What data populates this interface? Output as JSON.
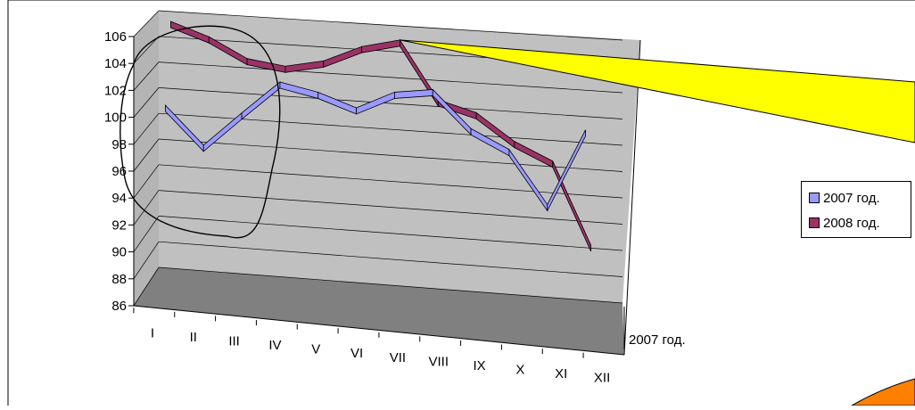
{
  "chart_data": {
    "type": "line",
    "title": "",
    "xlabel": "",
    "ylabel": "",
    "categories": [
      "I",
      "II",
      "III",
      "IV",
      "V",
      "VI",
      "VII",
      "VIII",
      "IX",
      "X",
      "XI",
      "XII"
    ],
    "ylim": [
      86,
      106
    ],
    "yticks": [
      "86",
      "88",
      "90",
      "92",
      "94",
      "96",
      "98",
      "100",
      "102",
      "104",
      "106"
    ],
    "depth_axis_label": "2007 год.",
    "grid": true,
    "legend_position": "right",
    "series": [
      {
        "name": "2007 год.",
        "color": "#9999ff",
        "values": [
          99.2,
          96.3,
          99.0,
          101.6,
          101.0,
          100.0,
          101.4,
          101.8,
          99.0,
          97.6,
          93.6,
          99.5
        ]
      },
      {
        "name": "2008 год.",
        "color": "#993366",
        "values": [
          105.5,
          104.5,
          103.0,
          102.6,
          103.2,
          104.5,
          105.2,
          100.8,
          100.0,
          98.0,
          96.7,
          90.5
        ]
      }
    ]
  },
  "colors": {
    "plot_wall": "#c0c0c0",
    "plot_floor": "#808080",
    "callout_fill": "#ffff00",
    "corner_shape": "#ff8000"
  }
}
